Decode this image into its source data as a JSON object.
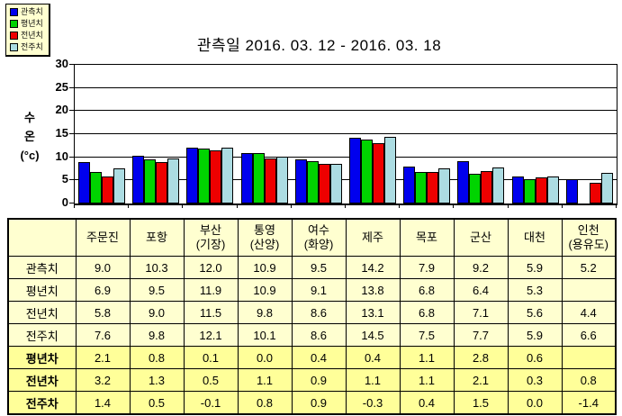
{
  "title": "관측일 2016. 03. 12 - 2016. 03. 18",
  "y_axis_title_lines": [
    "수",
    "온",
    "(°c)"
  ],
  "chart_data": {
    "type": "bar",
    "title": "관측일 2016. 03. 12 - 2016. 03. 18",
    "xlabel": "",
    "ylabel": "수온(°c)",
    "ylim": [
      0,
      30
    ],
    "yticks": [
      0,
      5,
      10,
      15,
      20,
      25,
      30
    ],
    "grid": true,
    "legend_position": "top-left",
    "categories": [
      "주문진",
      "포항",
      "부산(기장)",
      "통영(산양)",
      "여수(화양)",
      "제주",
      "목포",
      "군산",
      "대천",
      "인천(용유도)"
    ],
    "series": [
      {
        "name": "관측치",
        "color": "#0000EE",
        "values": [
          9.0,
          10.3,
          12.0,
          10.9,
          9.5,
          14.2,
          7.9,
          9.2,
          5.9,
          5.2
        ]
      },
      {
        "name": "평년치",
        "color": "#00D400",
        "values": [
          6.9,
          9.5,
          11.9,
          10.9,
          9.1,
          13.8,
          6.8,
          6.4,
          5.3,
          null
        ]
      },
      {
        "name": "전년치",
        "color": "#EE0000",
        "values": [
          5.8,
          9.0,
          11.5,
          9.8,
          8.6,
          13.1,
          6.8,
          7.1,
          5.6,
          4.4
        ]
      },
      {
        "name": "전주치",
        "color": "#ACDCE2",
        "values": [
          7.6,
          9.8,
          12.1,
          10.1,
          8.6,
          14.5,
          7.5,
          7.7,
          5.9,
          6.6
        ]
      }
    ]
  },
  "table": {
    "corner_label": "",
    "columns": [
      "주문진",
      "포항",
      "부산\n(기장)",
      "통영\n(산양)",
      "여수\n(화양)",
      "제주",
      "목포",
      "군산",
      "대천",
      "인천\n(용유도)"
    ],
    "rows": [
      {
        "label": "관측치",
        "bold": false,
        "values": [
          "9.0",
          "10.3",
          "12.0",
          "10.9",
          "9.5",
          "14.2",
          "7.9",
          "9.2",
          "5.9",
          "5.2"
        ]
      },
      {
        "label": "평년치",
        "bold": false,
        "values": [
          "6.9",
          "9.5",
          "11.9",
          "10.9",
          "9.1",
          "13.8",
          "6.8",
          "6.4",
          "5.3",
          ""
        ]
      },
      {
        "label": "전년치",
        "bold": false,
        "values": [
          "5.8",
          "9.0",
          "11.5",
          "9.8",
          "8.6",
          "13.1",
          "6.8",
          "7.1",
          "5.6",
          "4.4"
        ]
      },
      {
        "label": "전주치",
        "bold": false,
        "values": [
          "7.6",
          "9.8",
          "12.1",
          "10.1",
          "8.6",
          "14.5",
          "7.5",
          "7.7",
          "5.9",
          "6.6"
        ]
      },
      {
        "label": "평년차",
        "bold": true,
        "values": [
          "2.1",
          "0.8",
          "0.1",
          "0.0",
          "0.4",
          "0.4",
          "1.1",
          "2.8",
          "0.6",
          ""
        ]
      },
      {
        "label": "전년차",
        "bold": true,
        "values": [
          "3.2",
          "1.3",
          "0.5",
          "1.1",
          "0.9",
          "1.1",
          "1.1",
          "2.1",
          "0.3",
          "0.8"
        ]
      },
      {
        "label": "전주차",
        "bold": true,
        "values": [
          "1.4",
          "0.5",
          "-0.1",
          "0.8",
          "0.9",
          "-0.3",
          "0.4",
          "1.5",
          "0.0",
          "-1.4"
        ]
      }
    ]
  },
  "colors": {
    "table_light_bg": "#FFFFD0",
    "table_emphasis_bg": "#FFFF99",
    "legend_bg": "#FFFFD0",
    "axis": "#000000"
  }
}
